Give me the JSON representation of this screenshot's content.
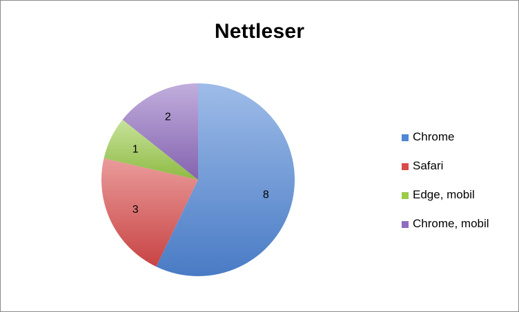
{
  "chart_data": {
    "type": "pie",
    "title": "Nettleser",
    "categories": [
      "Chrome",
      "Safari",
      "Edge, mobil",
      "Chrome, mobil"
    ],
    "values": [
      8,
      3,
      1,
      2
    ],
    "data_labels": [
      "8",
      "3",
      "1",
      "2"
    ],
    "colors": [
      "#4f86d6",
      "#d94a4a",
      "#9acb4a",
      "#8f6cbf"
    ],
    "legend_position": "right"
  }
}
